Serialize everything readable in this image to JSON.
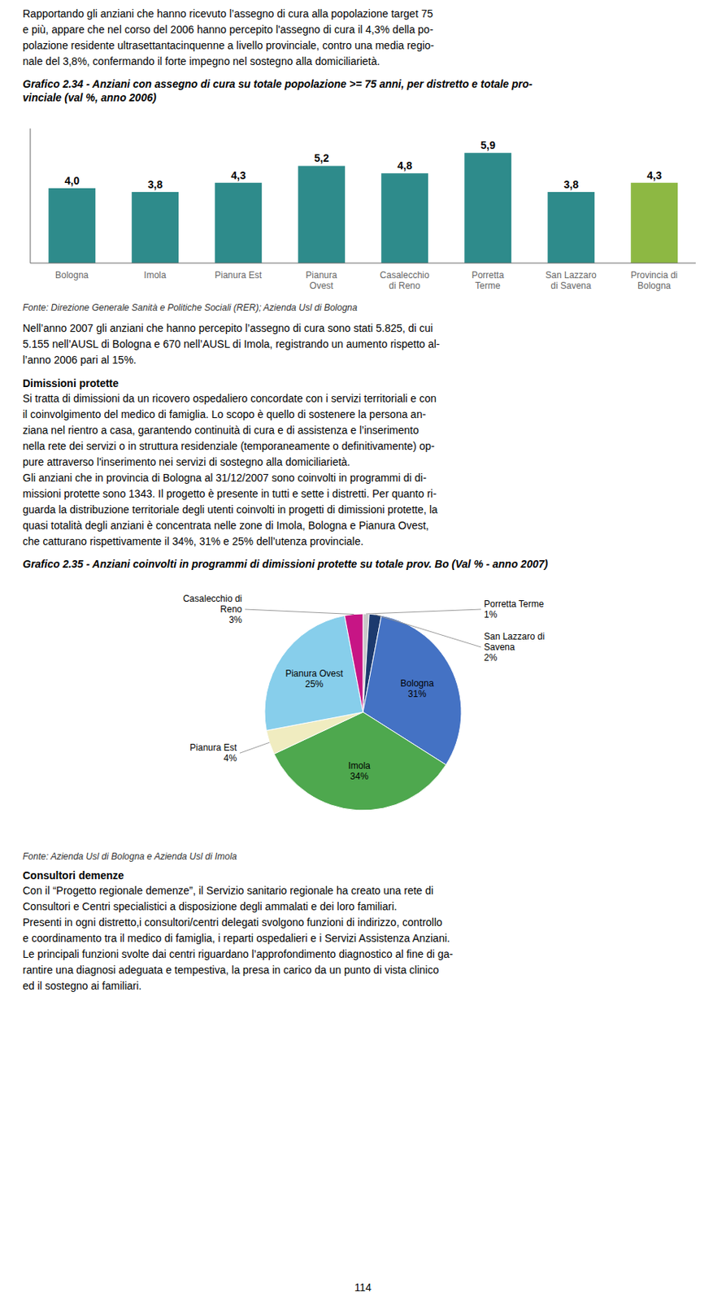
{
  "chart_data": [
    {
      "type": "bar",
      "title": "Grafico 2.34 - Anziani con assegno di cura su totale popolazione >= 75 anni, per distretto e totale pro-\nvinciale (val %, anno 2006)",
      "categories": [
        "Bologna",
        "Imola",
        "Pianura Est",
        "Pianura\nOvest",
        "Casalecchio\ndi Reno",
        "Porretta\nTerme",
        "San Lazzaro\ndi Savena",
        "Provincia di\nBologna"
      ],
      "values": [
        4.0,
        3.8,
        4.3,
        5.2,
        4.8,
        5.9,
        3.8,
        4.3
      ],
      "value_labels": [
        "4,0",
        "3,8",
        "4,3",
        "5,2",
        "4,8",
        "5,9",
        "3,8",
        "4,3"
      ],
      "colors": [
        "#2e8b8b",
        "#2e8b8b",
        "#2e8b8b",
        "#2e8b8b",
        "#2e8b8b",
        "#2e8b8b",
        "#2e8b8b",
        "#8db843"
      ],
      "ylim": [
        0,
        7.2
      ],
      "data_labels": true,
      "tick_labels": "x",
      "grid": false,
      "annotations": [
        "Rapportando gli anziani che hanno ricevuto l’assegno di cura alla popolazione target 75\ne più, appare che nel corso del 2006 hanno percepito l'assegno di cura il 4,3% della po-\npolazione residente ultrasettantacinquenne a livello provinciale, contro una media regio-\nnale del 3,8%, confermando il forte impegno nel sostegno alla domiciliarietà.",
        "Fonte: Direzione Generale Sanità e Politiche Sociali (RER); Azienda Usl di Bologna",
        "Nell’anno 2007 gli anziani che hanno percepito l’assegno di cura sono stati 5.825, di cui\n5.155 nell’AUSL di Bologna e 670 nell’AUSL di Imola, registrando un aumento rispetto al-\nl’anno 2006 pari al 15%."
      ]
    },
    {
      "type": "pie",
      "title": "Grafico 2.35 - Anziani coinvolti in programmi di dimissioni protette su totale prov. Bo (Val % - anno 2007)",
      "categories": [
        "Porretta Terme",
        "San Lazzaro di\nSavena",
        "Bologna",
        "Imola",
        "Pianura Est",
        "Pianura Ovest",
        "Casalecchio di\nReno"
      ],
      "values": [
        1,
        2,
        31,
        34,
        4,
        25,
        3
      ],
      "value_labels": [
        "1%",
        "2%",
        "31%",
        "34%",
        "4%",
        "25%",
        "3%"
      ],
      "colors": [
        "#c8c8c8",
        "#1c3a6e",
        "#4472c4",
        "#4ea84e",
        "#f0ecc0",
        "#87ceeb",
        "#c71585"
      ],
      "data_labels": true,
      "annotations": [
        "Dimissioni protette",
        "Si tratta di dimissioni da un ricovero ospedaliero concordate con i servizi territoriali e con\nil coinvolgimento del medico di famiglia. Lo scopo è quello di sostenere la persona an-\nziana nel rientro a casa, garantendo continuità di cura e di assistenza e l’inserimento\nnella rete dei servizi o in struttura residenziale (temporaneamente o definitivamente) op-\npure attraverso l'inserimento nei servizi di sostegno alla domiciliarietà.\nGli anziani che in provincia di Bologna al 31/12/2007 sono coinvolti in programmi di di-\nmissioni protette sono 1343. Il progetto è presente in tutti e sette i distretti. Per quanto ri-\nguarda la distribuzione territoriale degli utenti coinvolti in progetti di dimissioni protette, la\nquasi totalità degli anziani è concentrata nelle zone di Imola, Bologna e Pianura Ovest,\nche catturano rispettivamente il 34%, 31% e 25% dell’utenza provinciale.",
        "Fonte: Azienda Usl di Bologna e Azienda Usl di Imola",
        "Consultori demenze",
        "Con il “Progetto regionale demenze”, il Servizio sanitario regionale ha creato una rete di\nConsultori e Centri specialistici a disposizione degli ammalati e dei loro familiari.\nPresenti in ogni distretto,i consultori/centri delegati svolgono funzioni di indirizzo, controllo\ne coordinamento tra il medico di famiglia, i reparti ospedalieri e i Servizi Assistenza Anziani.\nLe principali funzioni svolte dai centri riguardano l’approfondimento diagnostico al fine di ga-\nrantire una diagnosi adeguata e tempestiva, la presa in carico da un punto di vista clinico\ned il sostegno ai familiari.",
        "114"
      ]
    }
  ]
}
